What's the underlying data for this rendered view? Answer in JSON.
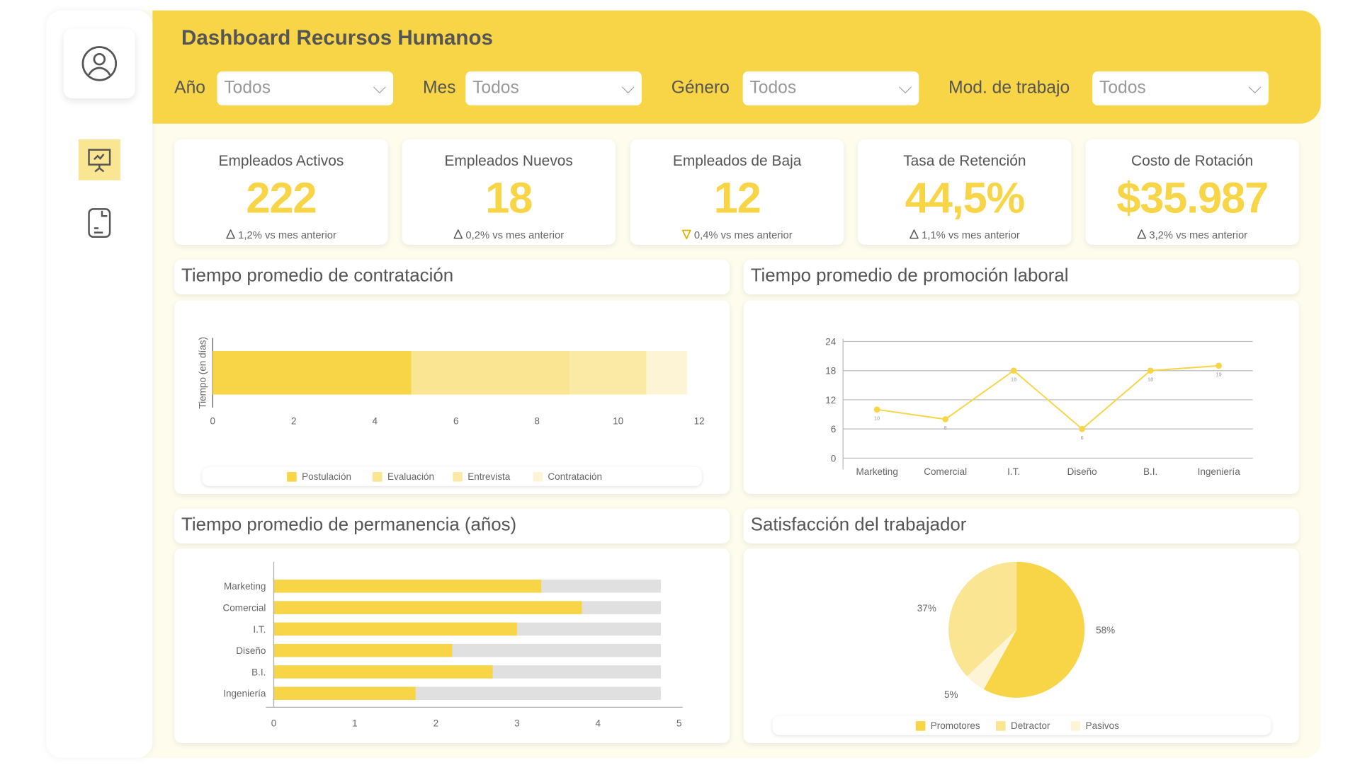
{
  "header": {
    "title": "Dashboard Recursos Humanos"
  },
  "filters": [
    {
      "label": "Año",
      "value": "Todos"
    },
    {
      "label": "Mes",
      "value": "Todos"
    },
    {
      "label": "Género",
      "value": "Todos"
    },
    {
      "label": "Mod. de trabajo",
      "value": "Todos"
    }
  ],
  "sidebar": {
    "icons": [
      "user-icon",
      "presentation-chart-icon",
      "document-icon"
    ]
  },
  "kpis": [
    {
      "title": "Empleados Activos",
      "value": "222",
      "delta": "1,2% vs mes anterior",
      "trend": "up"
    },
    {
      "title": "Empleados Nuevos",
      "value": "18",
      "delta": "0,2% vs mes anterior",
      "trend": "up"
    },
    {
      "title": "Empleados de Baja",
      "value": "12",
      "delta": "0,4% vs mes anterior",
      "trend": "down"
    },
    {
      "title": "Tasa de Retención",
      "value": "44,5%",
      "delta": "1,1% vs mes anterior",
      "trend": "up"
    },
    {
      "title": "Costo de Rotación",
      "value": "$35.987",
      "delta": "3,2% vs mes anterior",
      "trend": "up"
    }
  ],
  "colors": {
    "accent": "#f7d547",
    "c2": "#f9e592",
    "c3": "#fbeaa6",
    "c4": "#fdf4d6",
    "track": "#e0e0e0"
  },
  "chart_data": [
    {
      "type": "bar",
      "orientation": "horizontal",
      "stacked": true,
      "title": "Tiempo promedio de contratación",
      "ylabel": "Tiempo (en días)",
      "xlim": [
        0,
        12
      ],
      "xticks": [
        0,
        2,
        4,
        6,
        8,
        10,
        12
      ],
      "legend": "bottom",
      "series": [
        {
          "name": "Postulación",
          "values": [
            4.9
          ]
        },
        {
          "name": "Evaluación",
          "values": [
            3.9
          ]
        },
        {
          "name": "Entrevista",
          "values": [
            1.9
          ]
        },
        {
          "name": "Contratación",
          "values": [
            1.0
          ]
        }
      ]
    },
    {
      "type": "line",
      "title": "Tiempo promedio de promoción laboral",
      "categories": [
        "Marketing",
        "Comercial",
        "I.T.",
        "Diseño",
        "B.I.",
        "Ingeniería"
      ],
      "values": [
        10,
        8,
        18,
        6,
        18,
        19
      ],
      "ylim": [
        0,
        24
      ],
      "yticks": [
        0,
        6,
        12,
        18,
        24
      ],
      "grid": true
    },
    {
      "type": "bar",
      "orientation": "horizontal",
      "title": "Tiempo promedio de permanencia (años)",
      "categories": [
        "Marketing",
        "Comercial",
        "I.T.",
        "Diseño",
        "B.I.",
        "Ingeniería"
      ],
      "values": [
        3.3,
        3.8,
        3.0,
        2.2,
        2.7,
        1.75
      ],
      "xlim": [
        0,
        5
      ],
      "xticks": [
        0,
        1,
        2,
        3,
        4,
        5
      ]
    },
    {
      "type": "pie",
      "title": "Satisfacción del trabajador",
      "legend": "bottom",
      "slices": [
        {
          "name": "Promotores",
          "value": 58,
          "label": "58%"
        },
        {
          "name": "Pasivos",
          "value": 5,
          "label": "5%"
        },
        {
          "name": "Detractor",
          "value": 37,
          "label": "37%"
        }
      ],
      "legend_order": [
        "Promotores",
        "Detractor",
        "Pasivos"
      ]
    }
  ]
}
